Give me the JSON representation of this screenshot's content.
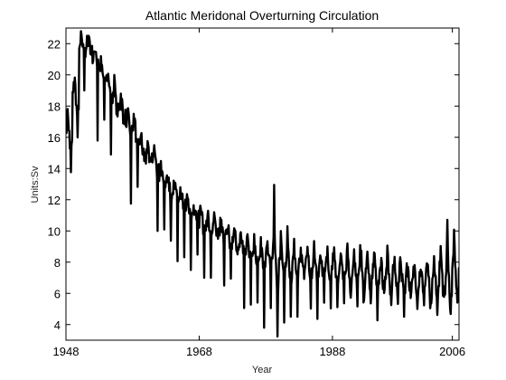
{
  "chart_data": {
    "type": "line",
    "title": "Atlantic Meridonal Overturning Circulation",
    "xlabel": "Year",
    "ylabel": "Units:Sv",
    "xlim": [
      1948,
      2007
    ],
    "ylim": [
      3,
      23
    ],
    "xticks": [
      1948,
      1968,
      1988,
      2006
    ],
    "xtick_labels": [
      "1948",
      "1968",
      "1988",
      "2006"
    ],
    "yticks": [
      4,
      6,
      8,
      10,
      12,
      14,
      16,
      18,
      20,
      22
    ],
    "ytick_labels": [
      "4",
      "6",
      "8",
      "10",
      "12",
      "14",
      "16",
      "18",
      "20",
      "22"
    ],
    "grid": false,
    "line_color": "#000000",
    "series": [
      {
        "x": [
          1948,
          1949,
          1950,
          1951,
          1952,
          1953,
          1954,
          1955,
          1956,
          1957,
          1958,
          1959,
          1960,
          1961,
          1962,
          1963,
          1964,
          1965,
          1966,
          1967,
          1968,
          1969,
          1970,
          1971,
          1972,
          1973,
          1974,
          1975,
          1976,
          1977,
          1978,
          1979,
          1980,
          1981,
          1982,
          1983,
          1984,
          1985,
          1986,
          1987,
          1988,
          1989,
          1990,
          1991,
          1992,
          1993,
          1994,
          1995,
          1996,
          1997,
          1998,
          1999,
          2000,
          2001,
          2002,
          2003,
          2004,
          2005,
          2006,
          2007
        ],
        "mean": [
          16.2,
          18.5,
          21.8,
          22.0,
          21.0,
          20.2,
          19.3,
          18.4,
          17.6,
          16.8,
          16.0,
          15.4,
          14.8,
          14.2,
          13.5,
          13.0,
          12.5,
          12.0,
          11.5,
          11.0,
          10.6,
          10.3,
          10.1,
          9.9,
          9.6,
          9.3,
          9.0,
          8.8,
          8.6,
          8.4,
          8.3,
          8.2,
          8.1,
          8.0,
          7.9,
          7.9,
          7.8,
          7.7,
          7.6,
          7.6,
          7.5,
          7.5,
          7.4,
          7.3,
          7.3,
          7.2,
          7.2,
          7.1,
          7.0,
          7.0,
          6.9,
          6.9,
          6.8,
          6.8,
          6.8,
          6.8,
          6.9,
          7.0,
          7.2,
          7.5
        ],
        "high": [
          18.0,
          21.0,
          22.8,
          22.5,
          21.5,
          21.2,
          20.5,
          20.0,
          19.0,
          18.5,
          18.0,
          16.5,
          16.0,
          15.5,
          15.0,
          14.5,
          13.5,
          13.0,
          12.5,
          12.0,
          12.2,
          11.5,
          11.2,
          11.0,
          10.8,
          10.5,
          10.2,
          10.0,
          9.8,
          9.6,
          9.5,
          13.0,
          10.0,
          10.3,
          9.5,
          9.0,
          9.0,
          10.0,
          8.8,
          9.0,
          9.5,
          9.2,
          9.8,
          9.0,
          10.5,
          9.0,
          9.0,
          8.8,
          9.8,
          9.5,
          9.0,
          8.5,
          9.0,
          8.5,
          9.8,
          9.0,
          9.5,
          11.0,
          10.5,
          10.0
        ],
        "low": [
          13.7,
          16.0,
          19.0,
          18.5,
          15.5,
          17.0,
          14.5,
          12.2,
          12.5,
          11.3,
          12.5,
          11.5,
          10.5,
          10.0,
          9.5,
          8.8,
          8.0,
          8.0,
          7.5,
          7.8,
          7.0,
          7.0,
          6.5,
          6.5,
          6.5,
          5.5,
          4.5,
          5.0,
          5.0,
          3.8,
          4.5,
          3.0,
          4.0,
          4.5,
          4.5,
          5.0,
          4.5,
          4.2,
          4.8,
          5.0,
          4.8,
          5.0,
          4.8,
          5.0,
          4.0,
          5.0,
          3.9,
          4.2,
          4.5,
          4.5,
          4.5,
          4.5,
          5.0,
          4.8,
          4.5,
          4.5,
          4.0,
          4.5,
          5.0,
          5.5
        ],
        "samples_per_year": 12
      }
    ]
  }
}
